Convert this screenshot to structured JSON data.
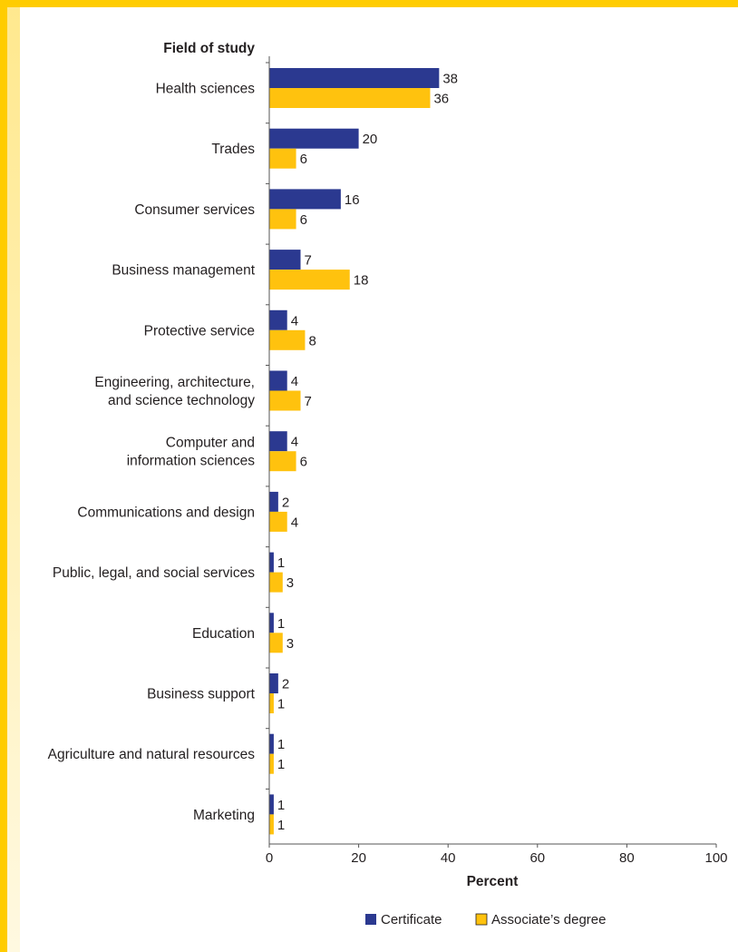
{
  "chart_data": {
    "type": "bar",
    "orientation": "horizontal",
    "y_axis_title": "Field of study",
    "xlabel": "Percent",
    "xlim": [
      0,
      100
    ],
    "xticks": [
      0,
      20,
      40,
      60,
      80,
      100
    ],
    "grid": false,
    "legend_position": "bottom",
    "categories": [
      [
        "Health sciences"
      ],
      [
        "Trades"
      ],
      [
        "Consumer services"
      ],
      [
        "Business management"
      ],
      [
        "Protective service"
      ],
      [
        "Engineering, architecture,",
        "and science technology"
      ],
      [
        "Computer and",
        "information sciences"
      ],
      [
        "Communications and design"
      ],
      [
        "Public, legal, and social services"
      ],
      [
        "Education"
      ],
      [
        "Business support"
      ],
      [
        "Agriculture and natural resources"
      ],
      [
        "Marketing"
      ]
    ],
    "series": [
      {
        "name": "Certificate",
        "color": "#2b3990",
        "values": [
          38,
          20,
          16,
          7,
          4,
          4,
          4,
          2,
          1,
          1,
          2,
          1,
          1
        ]
      },
      {
        "name": "Associate’s degree",
        "color": "#ffc20e",
        "values": [
          36,
          6,
          6,
          18,
          8,
          7,
          6,
          4,
          3,
          3,
          1,
          1,
          1
        ]
      }
    ]
  },
  "colors": {
    "frame": "#ffcc00",
    "text": "#231f20",
    "axis": "#555555"
  }
}
